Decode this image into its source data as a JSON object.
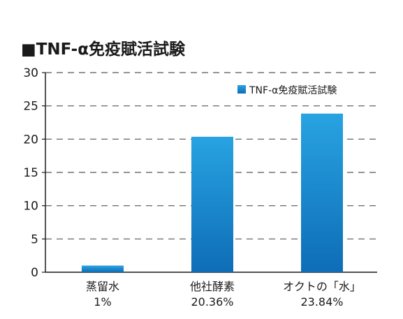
{
  "chart_data": {
    "type": "bar",
    "title": "■TNF-α免疫賦活試験",
    "categories": [
      "蒸留水",
      "他社酵素",
      "オクトの「水」"
    ],
    "category_values_text": [
      "1%",
      "20.36%",
      "23.84%"
    ],
    "series": [
      {
        "name": "TNF-α免疫賦活試験",
        "values": [
          1,
          20.36,
          23.84
        ]
      }
    ],
    "ylim": [
      0,
      30
    ],
    "yticks": [
      0,
      5,
      10,
      15,
      20,
      25,
      30
    ],
    "grid": true,
    "grid_style": "dashed",
    "legend_position": "top-right",
    "bar_color_top": "#28a3e2",
    "bar_color_bottom": "#0e6db6",
    "grid_color": "#555555"
  }
}
